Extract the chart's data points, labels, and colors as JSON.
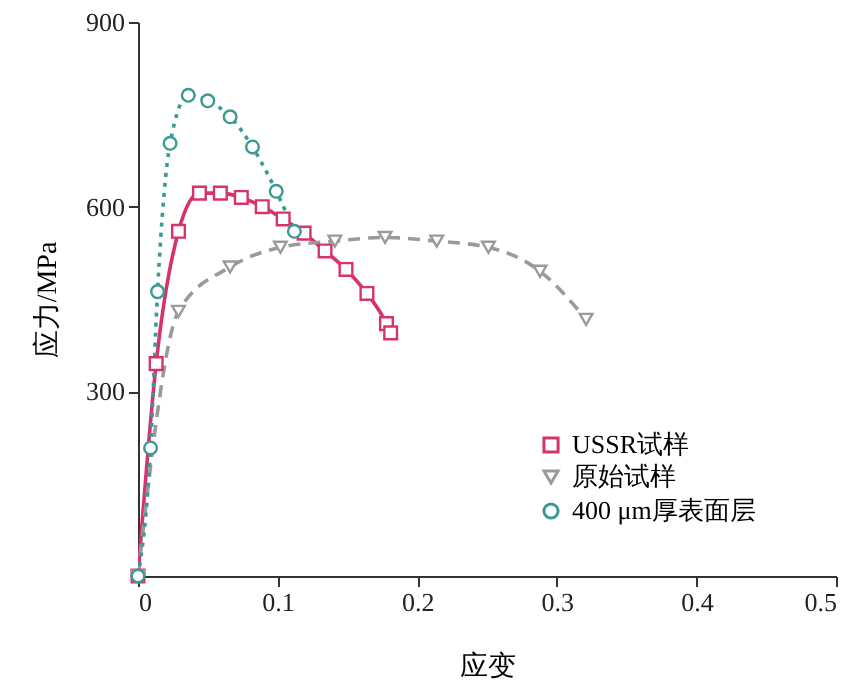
{
  "chart_data": {
    "type": "line",
    "xlabel": "应变",
    "ylabel": "应力/MPa",
    "xlim": [
      0,
      0.5
    ],
    "ylim": [
      0,
      900
    ],
    "xticks": [
      0,
      0.1,
      0.2,
      0.3,
      0.4,
      0.5
    ],
    "yticks": [
      300,
      600,
      900
    ],
    "grid": false,
    "legend": "bottom right",
    "series": [
      {
        "name": "USSR试样",
        "color": "#d6336c",
        "marker": "square",
        "line_style": "solid",
        "x": [
          0,
          0.013,
          0.029,
          0.044,
          0.059,
          0.074,
          0.089,
          0.104,
          0.119,
          0.134,
          0.149,
          0.164,
          0.178,
          0.181
        ],
        "values": [
          0,
          345,
          560,
          622,
          622,
          615,
          600,
          580,
          557,
          528,
          498,
          459,
          410,
          395
        ]
      },
      {
        "name": "原始试样",
        "color": "#9a9a9a",
        "marker": "triangle",
        "line_style": "dashed",
        "x": [
          0,
          0.029,
          0.066,
          0.102,
          0.141,
          0.177,
          0.214,
          0.251,
          0.288,
          0.321
        ],
        "values": [
          0,
          430,
          502,
          534,
          544,
          550,
          544,
          534,
          495,
          417
        ]
      },
      {
        "name": "400 μm厚表面层",
        "color": "#3a9a96",
        "marker": "circle",
        "line_style": "dotted",
        "x": [
          0,
          0.009,
          0.014,
          0.023,
          0.036,
          0.05,
          0.066,
          0.082,
          0.099,
          0.112
        ],
        "values": [
          0,
          208,
          462,
          703,
          781,
          772,
          746,
          697,
          625,
          560
        ]
      }
    ]
  }
}
